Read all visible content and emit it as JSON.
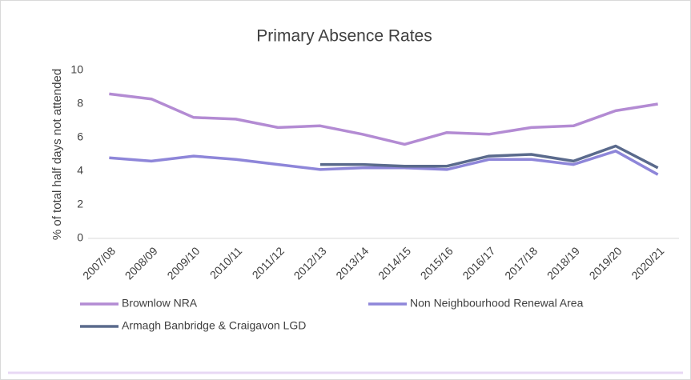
{
  "chart_data": {
    "type": "line",
    "title": "Primary Absence Rates",
    "y_label": "% of total half days not attended",
    "categories": [
      "2007/08",
      "2008/09",
      "2009/10",
      "2010/11",
      "2011/12",
      "2012/13",
      "2013/14",
      "2014/15",
      "2015/16",
      "2016/17",
      "2017/18",
      "2018/19",
      "2019/20",
      "2020/21"
    ],
    "series": [
      {
        "name": "Brownlow NRA",
        "color": "#b38bd3",
        "values": [
          8.6,
          8.3,
          7.2,
          7.1,
          6.6,
          6.7,
          6.2,
          5.6,
          6.3,
          6.2,
          6.6,
          6.7,
          7.6,
          8.0
        ]
      },
      {
        "name": "Non Neighbourhood Renewal Area",
        "color": "#8e86d9",
        "values": [
          4.8,
          4.6,
          4.9,
          4.7,
          4.4,
          4.1,
          4.2,
          4.2,
          4.1,
          4.7,
          4.7,
          4.4,
          5.2,
          3.8
        ]
      },
      {
        "name": "Armagh Banbridge & Craigavon LGD",
        "color": "#5a6a8c",
        "values": [
          null,
          null,
          null,
          null,
          null,
          4.4,
          4.4,
          4.3,
          4.3,
          4.9,
          5.0,
          4.6,
          5.5,
          4.2
        ]
      }
    ],
    "ylim": [
      0,
      10
    ],
    "yticks": [
      0,
      2,
      4,
      6,
      8,
      10
    ],
    "grid": false
  }
}
